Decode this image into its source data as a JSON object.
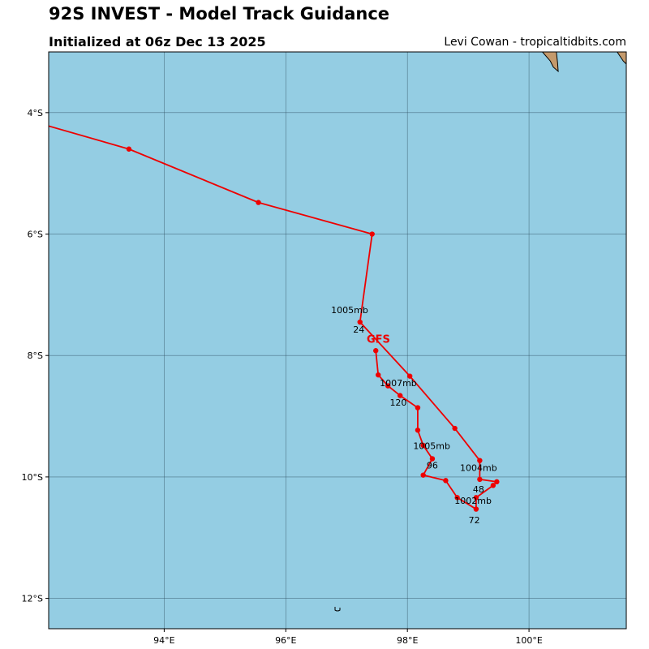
{
  "header": {
    "title": "92S INVEST - Model Track Guidance",
    "subtitle": "Initialized at 06z Dec 13 2025",
    "credit": "Levi Cowan - tropicaltidbits.com"
  },
  "colors": {
    "ocean": "#94cde3",
    "land": "#c49a6c",
    "track": "#ee0000",
    "grid": "#2f4f5f"
  },
  "chart_data": {
    "type": "map-track",
    "projection": "lon-lat",
    "xlim": [
      92.1,
      101.6
    ],
    "ylim": [
      -12.5,
      -3.0
    ],
    "lon_ticks": [
      {
        "value": 94,
        "label": "94°E"
      },
      {
        "value": 96,
        "label": "96°E"
      },
      {
        "value": 98,
        "label": "98°E"
      },
      {
        "value": 100,
        "label": "100°E"
      }
    ],
    "lat_ticks": [
      {
        "value": -4,
        "label": "4°S"
      },
      {
        "value": -6,
        "label": "6°S"
      },
      {
        "value": -8,
        "label": "8°S"
      },
      {
        "value": -10,
        "label": "10°S"
      },
      {
        "value": -12,
        "label": "12°S"
      }
    ],
    "model": {
      "name": "GFS",
      "name_lon": 97.35,
      "name_lat": -7.72
    },
    "track": [
      {
        "lon": 97.48,
        "lat": -7.92
      },
      {
        "lon": 97.52,
        "lat": -8.32
      },
      {
        "lon": 97.68,
        "lat": -8.5
      },
      {
        "lon": 97.88,
        "lat": -8.66
      },
      {
        "lon": 98.17,
        "lat": -8.86
      },
      {
        "lon": 98.17,
        "lat": -9.23
      },
      {
        "lon": 98.26,
        "lat": -9.48
      },
      {
        "lon": 98.41,
        "lat": -9.7
      },
      {
        "lon": 98.26,
        "lat": -9.97
      },
      {
        "lon": 98.63,
        "lat": -10.06
      },
      {
        "lon": 98.82,
        "lat": -10.34
      },
      {
        "lon": 99.13,
        "lat": -10.53
      },
      {
        "lon": 99.13,
        "lat": -10.34
      },
      {
        "lon": 99.41,
        "lat": -10.14
      },
      {
        "lon": 99.47,
        "lat": -10.08
      },
      {
        "lon": 99.19,
        "lat": -10.04
      },
      {
        "lon": 99.19,
        "lat": -9.73
      },
      {
        "lon": 98.78,
        "lat": -9.2
      },
      {
        "lon": 98.04,
        "lat": -8.34
      },
      {
        "lon": 97.22,
        "lat": -7.45
      },
      {
        "lon": 97.42,
        "lat": -6.0
      },
      {
        "lon": 95.55,
        "lat": -5.48
      },
      {
        "lon": 93.42,
        "lat": -4.6
      },
      {
        "lon": 92.1,
        "lat": -4.22
      }
    ],
    "annotations": [
      {
        "text": "1005mb",
        "lon": 97.05,
        "lat": -7.25
      },
      {
        "text": "24",
        "lon": 97.2,
        "lat": -7.57
      },
      {
        "text": "1007mb",
        "lon": 97.85,
        "lat": -8.45
      },
      {
        "text": "120",
        "lon": 97.85,
        "lat": -8.77
      },
      {
        "text": "1005mb",
        "lon": 98.4,
        "lat": -9.49
      },
      {
        "text": "96",
        "lon": 98.41,
        "lat": -9.81
      },
      {
        "text": "1004mb",
        "lon": 99.17,
        "lat": -9.85
      },
      {
        "text": "48",
        "lon": 99.17,
        "lat": -10.2
      },
      {
        "text": "1002mb",
        "lon": 99.08,
        "lat": -10.39
      },
      {
        "text": "72",
        "lon": 99.1,
        "lat": -10.71
      }
    ],
    "land": [
      {
        "name": "sumatra-coast",
        "points": [
          [
            100.22,
            -3.0
          ],
          [
            100.45,
            -3.0
          ],
          [
            100.47,
            -3.18
          ],
          [
            100.48,
            -3.32
          ],
          [
            100.4,
            -3.25
          ],
          [
            100.35,
            -3.15
          ],
          [
            100.22,
            -3.0
          ]
        ]
      },
      {
        "name": "sumatra-corner",
        "points": [
          [
            101.45,
            -3.0
          ],
          [
            101.6,
            -3.0
          ],
          [
            101.6,
            -3.2
          ],
          [
            101.55,
            -3.15
          ],
          [
            101.45,
            -3.0
          ]
        ]
      }
    ],
    "islet": {
      "lon": 96.85,
      "lat": -12.18
    }
  }
}
